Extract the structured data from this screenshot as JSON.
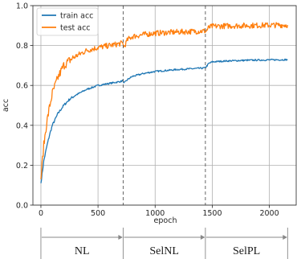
{
  "chart_data": {
    "type": "line",
    "xlabel": "epoch",
    "ylabel": "acc",
    "xlim": [
      -70,
      2235
    ],
    "ylim": [
      0.0,
      1.0
    ],
    "xticks": [
      0,
      500,
      1000,
      1500,
      2000
    ],
    "yticks": [
      0.0,
      0.2,
      0.4,
      0.6,
      0.8,
      1.0
    ],
    "xtick_labels": [
      "0",
      "500",
      "1000",
      "1500",
      "2000"
    ],
    "ytick_labels": [
      "0.0",
      "0.2",
      "0.4",
      "0.6",
      "0.8",
      "1.0"
    ],
    "grid": true,
    "legend_position": "top-left",
    "phase_boundaries": [
      720,
      1440,
      2160
    ],
    "series": [
      {
        "name": "train acc",
        "color": "#1f77b4",
        "x": [
          0,
          25,
          50,
          75,
          100,
          150,
          200,
          250,
          300,
          350,
          400,
          500,
          600,
          700,
          719,
          725,
          760,
          800,
          900,
          1000,
          1100,
          1200,
          1300,
          1400,
          1439,
          1442,
          1470,
          1500,
          1600,
          1800,
          2000,
          2160
        ],
        "y": [
          0.11,
          0.22,
          0.29,
          0.35,
          0.4,
          0.46,
          0.5,
          0.53,
          0.55,
          0.565,
          0.58,
          0.6,
          0.61,
          0.62,
          0.625,
          0.61,
          0.63,
          0.645,
          0.66,
          0.67,
          0.675,
          0.68,
          0.683,
          0.686,
          0.688,
          0.69,
          0.71,
          0.718,
          0.722,
          0.726,
          0.728,
          0.729
        ]
      },
      {
        "name": "test acc",
        "color": "#ff7f0e",
        "x": [
          0,
          25,
          50,
          75,
          100,
          150,
          200,
          250,
          300,
          350,
          400,
          500,
          600,
          700,
          719,
          725,
          760,
          800,
          900,
          1000,
          1100,
          1200,
          1300,
          1400,
          1439,
          1442,
          1470,
          1500,
          1600,
          1800,
          2000,
          2160
        ],
        "y": [
          0.13,
          0.3,
          0.41,
          0.49,
          0.56,
          0.64,
          0.7,
          0.725,
          0.745,
          0.76,
          0.775,
          0.79,
          0.8,
          0.81,
          0.815,
          0.79,
          0.83,
          0.845,
          0.855,
          0.862,
          0.865,
          0.868,
          0.87,
          0.872,
          0.873,
          0.87,
          0.89,
          0.896,
          0.898,
          0.9,
          0.902,
          0.903
        ]
      }
    ]
  },
  "phases": [
    {
      "label": "NL",
      "start": 0,
      "end": 720
    },
    {
      "label": "SelNL",
      "start": 720,
      "end": 1440
    },
    {
      "label": "SelPL",
      "start": 1440,
      "end": 2160
    }
  ]
}
